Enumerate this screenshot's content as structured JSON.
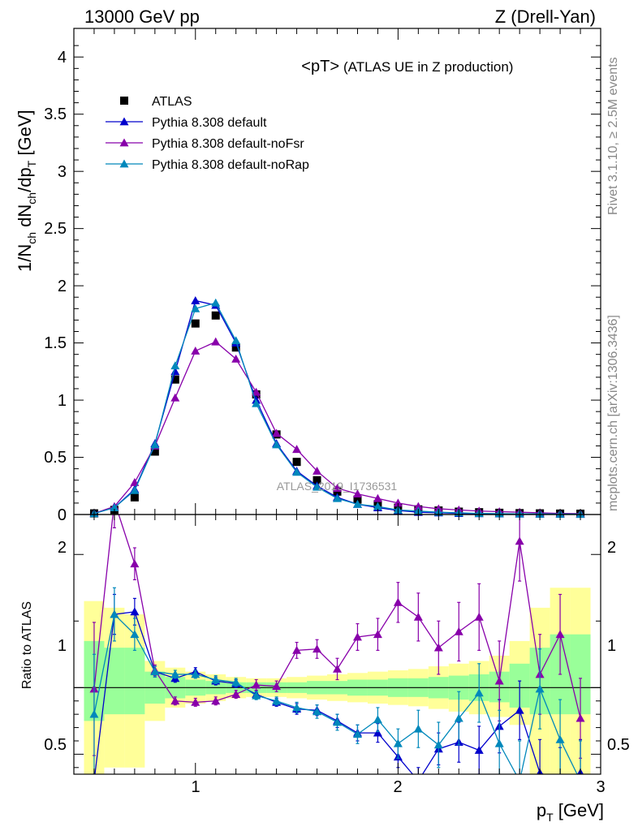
{
  "header": {
    "left": "13000 GeV pp",
    "right": "Z (Drell-Yan)"
  },
  "side_labels": {
    "rivet": "Rivet 3.1.10, ≥ 2.5M events",
    "mcplots": "mcplots.cern.ch [arXiv:1306.3436]"
  },
  "chart_data": [
    {
      "type": "scatter",
      "title": "<pT>",
      "subtitle": "(ATLAS UE in Z production)",
      "ylabel_main": "1/N",
      "ylabel_sub1": "ch",
      "ylabel_mid": " dN",
      "ylabel_sub2": "ch",
      "ylabel_end": "/dp",
      "ylabel_sub3": "T",
      "ylabel_tail": " [GeV]",
      "watermark": "ATLAS_2019_I1736531",
      "xlim": [
        0.4,
        3.0
      ],
      "ylim": [
        0,
        4.25
      ],
      "yticks": [
        "0",
        "0.5",
        "1",
        "1.5",
        "2",
        "2.5",
        "3",
        "3.5",
        "4"
      ],
      "x": [
        0.5,
        0.6,
        0.7,
        0.8,
        0.9,
        1.0,
        1.1,
        1.2,
        1.3,
        1.4,
        1.5,
        1.6,
        1.7,
        1.8,
        1.9,
        2.0,
        2.1,
        2.2,
        2.3,
        2.4,
        2.5,
        2.6,
        2.7,
        2.8,
        2.9
      ],
      "series": [
        {
          "name": "ATLAS",
          "color": "#000000",
          "marker": "square",
          "values": [
            0.01,
            0.04,
            0.15,
            0.55,
            1.18,
            1.67,
            1.74,
            1.46,
            1.05,
            0.7,
            0.46,
            0.3,
            0.2,
            0.13,
            0.09,
            0.06,
            0.045,
            0.035,
            0.025,
            0.02,
            0.015,
            0.012,
            0.01,
            0.008,
            0.007
          ]
        },
        {
          "name": "Pythia 8.308 default",
          "color": "#0000cc",
          "marker": "triangle",
          "values": [
            0.01,
            0.06,
            0.22,
            0.62,
            1.25,
            1.87,
            1.83,
            1.5,
            1.0,
            0.62,
            0.38,
            0.25,
            0.15,
            0.09,
            0.06,
            0.035,
            0.02,
            0.015,
            0.01,
            0.008,
            0.006,
            0.005,
            0.004,
            0.003,
            0.002
          ]
        },
        {
          "name": "Pythia 8.308 default-noFsr",
          "color": "#8800aa",
          "marker": "triangle",
          "values": [
            0.01,
            0.07,
            0.28,
            0.6,
            1.02,
            1.43,
            1.51,
            1.36,
            1.07,
            0.71,
            0.57,
            0.38,
            0.23,
            0.18,
            0.14,
            0.1,
            0.07,
            0.05,
            0.04,
            0.03,
            0.025,
            0.02,
            0.015,
            0.01,
            0.008
          ]
        },
        {
          "name": "Pythia 8.308 default-noRap",
          "color": "#0088bb",
          "marker": "triangle",
          "values": [
            0.008,
            0.06,
            0.21,
            0.61,
            1.3,
            1.8,
            1.85,
            1.52,
            0.97,
            0.61,
            0.37,
            0.24,
            0.14,
            0.09,
            0.07,
            0.04,
            0.03,
            0.02,
            0.015,
            0.01,
            0.008,
            0.006,
            0.005,
            0.004,
            0.003
          ]
        }
      ]
    },
    {
      "type": "line",
      "ylabel": "Ratio to ATLAS",
      "xlabel_main": "p",
      "xlabel_sub": "T",
      "xlabel_tail": " [GeV]",
      "xticks": [
        "1",
        "2",
        "3"
      ],
      "yticks": [
        "0.5",
        "1",
        "2"
      ],
      "ylim": [
        0.35,
        2.3
      ],
      "x": [
        0.5,
        0.6,
        0.7,
        0.8,
        0.9,
        1.0,
        1.1,
        1.2,
        1.3,
        1.4,
        1.5,
        1.6,
        1.7,
        1.8,
        1.9,
        2.0,
        2.1,
        2.2,
        2.3,
        2.4,
        2.5,
        2.6,
        2.7,
        2.8,
        2.9
      ],
      "band_bins": [
        0.45,
        0.55,
        0.65,
        0.75,
        0.85,
        0.95,
        1.05,
        1.15,
        1.25,
        1.35,
        1.45,
        1.55,
        1.65,
        1.75,
        1.85,
        1.95,
        2.05,
        2.15,
        2.25,
        2.35,
        2.45,
        2.55,
        2.65,
        2.75,
        2.85,
        2.95
      ],
      "band_yellow": [
        [
          0.35,
          1.65
        ],
        [
          0.4,
          1.6
        ],
        [
          0.4,
          1.55
        ],
        [
          0.75,
          1.2
        ],
        [
          0.85,
          1.15
        ],
        [
          0.88,
          1.12
        ],
        [
          0.9,
          1.1
        ],
        [
          0.92,
          1.08
        ],
        [
          0.93,
          1.07
        ],
        [
          0.93,
          1.07
        ],
        [
          0.92,
          1.08
        ],
        [
          0.91,
          1.09
        ],
        [
          0.9,
          1.1
        ],
        [
          0.89,
          1.11
        ],
        [
          0.88,
          1.12
        ],
        [
          0.87,
          1.13
        ],
        [
          0.86,
          1.14
        ],
        [
          0.84,
          1.16
        ],
        [
          0.82,
          1.18
        ],
        [
          0.8,
          1.2
        ],
        [
          0.78,
          1.24
        ],
        [
          0.72,
          1.35
        ],
        [
          0.35,
          1.6
        ],
        [
          0.35,
          1.75
        ],
        [
          0.35,
          1.75
        ]
      ],
      "band_green": [
        [
          0.75,
          1.35
        ],
        [
          0.8,
          1.3
        ],
        [
          0.8,
          1.3
        ],
        [
          0.88,
          1.12
        ],
        [
          0.92,
          1.08
        ],
        [
          0.94,
          1.06
        ],
        [
          0.95,
          1.05
        ],
        [
          0.96,
          1.04
        ],
        [
          0.96,
          1.04
        ],
        [
          0.96,
          1.04
        ],
        [
          0.96,
          1.04
        ],
        [
          0.95,
          1.05
        ],
        [
          0.95,
          1.05
        ],
        [
          0.94,
          1.06
        ],
        [
          0.94,
          1.06
        ],
        [
          0.93,
          1.07
        ],
        [
          0.93,
          1.07
        ],
        [
          0.92,
          1.08
        ],
        [
          0.91,
          1.09
        ],
        [
          0.9,
          1.1
        ],
        [
          0.89,
          1.12
        ],
        [
          0.85,
          1.18
        ],
        [
          0.8,
          1.3
        ],
        [
          0.8,
          1.4
        ],
        [
          0.8,
          1.4
        ]
      ],
      "series": [
        {
          "name": "Pythia 8.308 default",
          "color": "#0000cc",
          "values": [
            0.3,
            1.55,
            1.57,
            1.12,
            1.07,
            1.12,
            1.05,
            1.03,
            0.95,
            0.89,
            0.84,
            0.83,
            0.75,
            0.66,
            0.66,
            0.48,
            0.3,
            0.54,
            0.59,
            0.53,
            0.71,
            0.83,
            0.36,
            0.3,
            0.36
          ],
          "errors": [
            0.05,
            0.15,
            0.1,
            0.04,
            0.03,
            0.03,
            0.03,
            0.03,
            0.03,
            0.03,
            0.04,
            0.04,
            0.05,
            0.06,
            0.07,
            0.08,
            0.1,
            0.12,
            0.15,
            0.18,
            0.2,
            0.22,
            0.25,
            0.25,
            0.25
          ]
        },
        {
          "name": "Pythia 8.308 default-noFsr",
          "color": "#8800aa",
          "values": [
            0.99,
            2.4,
            1.93,
            1.13,
            0.9,
            0.89,
            0.9,
            0.95,
            1.02,
            1.01,
            1.28,
            1.29,
            1.14,
            1.38,
            1.4,
            1.64,
            1.53,
            1.3,
            1.42,
            1.53,
            1.05,
            2.1,
            1.1,
            1.4,
            0.77
          ],
          "errors": [
            0.5,
            0.2,
            0.12,
            0.04,
            0.03,
            0.03,
            0.03,
            0.03,
            0.04,
            0.04,
            0.06,
            0.07,
            0.08,
            0.1,
            0.12,
            0.15,
            0.18,
            0.2,
            0.22,
            0.25,
            0.3,
            0.3,
            0.3,
            0.3,
            0.3
          ]
        },
        {
          "name": "Pythia 8.308 default-noRap",
          "color": "#0088bb",
          "values": [
            0.8,
            1.55,
            1.4,
            1.12,
            1.1,
            1.1,
            1.06,
            1.04,
            0.94,
            0.9,
            0.85,
            0.82,
            0.74,
            0.65,
            0.76,
            0.58,
            0.69,
            0.57,
            0.77,
            0.96,
            0.58,
            0.3,
            0.99,
            0.61,
            0.3
          ],
          "errors": [
            0.45,
            0.2,
            0.12,
            0.04,
            0.03,
            0.03,
            0.03,
            0.03,
            0.03,
            0.03,
            0.04,
            0.05,
            0.06,
            0.07,
            0.09,
            0.11,
            0.14,
            0.17,
            0.2,
            0.22,
            0.25,
            0.3,
            0.3,
            0.3,
            0.3
          ]
        }
      ]
    }
  ]
}
